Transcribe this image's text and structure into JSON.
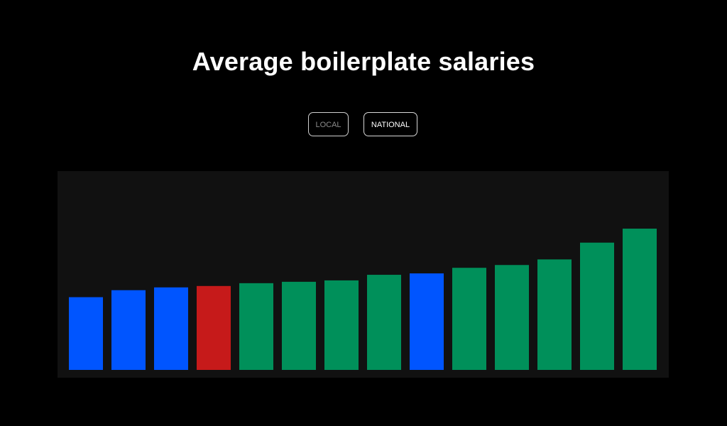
{
  "header": {
    "title": "Average boilerplate salaries"
  },
  "toggles": {
    "local_label": "LOCAL",
    "national_label": "NATIONAL",
    "selected": "NATIONAL"
  },
  "colors": {
    "background": "#000000",
    "panel": "#111111",
    "blue": "#0055ff",
    "red": "#c61a1a",
    "green": "#00905a"
  },
  "chart_data": {
    "type": "bar",
    "title": "",
    "xlabel": "",
    "ylabel": "",
    "ylim": [
      0,
      100
    ],
    "values": [
      52,
      57,
      59,
      60,
      62,
      63,
      64,
      68,
      69,
      73,
      75,
      79,
      91,
      101
    ],
    "bar_colors": [
      "blue",
      "blue",
      "blue",
      "red",
      "green",
      "green",
      "green",
      "green",
      "blue",
      "green",
      "green",
      "green",
      "green",
      "green"
    ]
  }
}
